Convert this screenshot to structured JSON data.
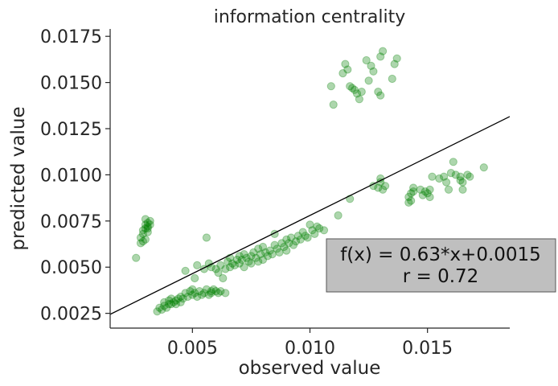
{
  "chart_data": {
    "type": "scatter",
    "title": "information centrality",
    "xlabel": "observed value",
    "ylabel": "predicted value",
    "xlim": [
      0.0015,
      0.0185
    ],
    "ylim": [
      0.0017,
      0.0179
    ],
    "xticks": [
      0.005,
      0.01,
      0.015
    ],
    "xtick_labels": [
      "0.005",
      "0.010",
      "0.015"
    ],
    "yticks": [
      0.0025,
      0.005,
      0.0075,
      0.01,
      0.0125,
      0.015,
      0.0175
    ],
    "ytick_labels": [
      "0.0025",
      "0.0050",
      "0.0075",
      "0.0100",
      "0.0125",
      "0.0150",
      "0.0175"
    ],
    "grid": false,
    "point_color": "#008000",
    "line_color": "#000000",
    "fit": {
      "slope": 0.63,
      "intercept": 0.0015
    },
    "annotation": {
      "line1": "f(x) = 0.63*x+0.0015",
      "line2": "r = 0.72",
      "box_color": "#bfbfbf"
    },
    "points": [
      [
        0.0026,
        0.0055
      ],
      [
        0.0028,
        0.0063
      ],
      [
        0.0028,
        0.0066
      ],
      [
        0.0029,
        0.0068
      ],
      [
        0.0029,
        0.007
      ],
      [
        0.003,
        0.0071
      ],
      [
        0.003,
        0.0073
      ],
      [
        0.003,
        0.0076
      ],
      [
        0.0031,
        0.0072
      ],
      [
        0.0031,
        0.0069
      ],
      [
        0.0031,
        0.0074
      ],
      [
        0.0032,
        0.0075
      ],
      [
        0.0032,
        0.0073
      ],
      [
        0.003,
        0.0065
      ],
      [
        0.0029,
        0.0064
      ],
      [
        0.0031,
        0.0071
      ],
      [
        0.0035,
        0.0026
      ],
      [
        0.0036,
        0.0028
      ],
      [
        0.0037,
        0.0027
      ],
      [
        0.0038,
        0.0029
      ],
      [
        0.0038,
        0.0031
      ],
      [
        0.0039,
        0.0028
      ],
      [
        0.004,
        0.003
      ],
      [
        0.004,
        0.0032
      ],
      [
        0.0041,
        0.003
      ],
      [
        0.0041,
        0.0033
      ],
      [
        0.0042,
        0.0031
      ],
      [
        0.0043,
        0.0032
      ],
      [
        0.0043,
        0.003
      ],
      [
        0.0044,
        0.0033
      ],
      [
        0.0045,
        0.0031
      ],
      [
        0.0045,
        0.0034
      ],
      [
        0.0046,
        0.0033
      ],
      [
        0.0047,
        0.0036
      ],
      [
        0.0048,
        0.0034
      ],
      [
        0.0049,
        0.0037
      ],
      [
        0.005,
        0.0035
      ],
      [
        0.005,
        0.0038
      ],
      [
        0.0051,
        0.0036
      ],
      [
        0.0052,
        0.0034
      ],
      [
        0.0053,
        0.0037
      ],
      [
        0.0054,
        0.0035
      ],
      [
        0.0055,
        0.0036
      ],
      [
        0.0056,
        0.0038
      ],
      [
        0.0057,
        0.0035
      ],
      [
        0.0058,
        0.0037
      ],
      [
        0.0058,
        0.0036
      ],
      [
        0.0059,
        0.0038
      ],
      [
        0.006,
        0.0037
      ],
      [
        0.0061,
        0.0036
      ],
      [
        0.0062,
        0.0037
      ],
      [
        0.0064,
        0.0036
      ],
      [
        0.0047,
        0.0048
      ],
      [
        0.0051,
        0.0044
      ],
      [
        0.0052,
        0.0051
      ],
      [
        0.0055,
        0.0049
      ],
      [
        0.0056,
        0.0066
      ],
      [
        0.0057,
        0.0052
      ],
      [
        0.0058,
        0.005
      ],
      [
        0.006,
        0.0049
      ],
      [
        0.0061,
        0.0047
      ],
      [
        0.0062,
        0.0051
      ],
      [
        0.0063,
        0.0044
      ],
      [
        0.0064,
        0.0049
      ],
      [
        0.0065,
        0.0053
      ],
      [
        0.0066,
        0.005
      ],
      [
        0.0066,
        0.0055
      ],
      [
        0.0067,
        0.0052
      ],
      [
        0.0068,
        0.0051
      ],
      [
        0.0069,
        0.0054
      ],
      [
        0.007,
        0.0052
      ],
      [
        0.007,
        0.0056
      ],
      [
        0.0071,
        0.0054
      ],
      [
        0.0072,
        0.005
      ],
      [
        0.0072,
        0.0057
      ],
      [
        0.0073,
        0.0055
      ],
      [
        0.0074,
        0.0053
      ],
      [
        0.0075,
        0.0056
      ],
      [
        0.0075,
        0.0052
      ],
      [
        0.0076,
        0.0058
      ],
      [
        0.0077,
        0.0055
      ],
      [
        0.0078,
        0.0053
      ],
      [
        0.0078,
        0.006
      ],
      [
        0.0079,
        0.0057
      ],
      [
        0.008,
        0.0054
      ],
      [
        0.008,
        0.0061
      ],
      [
        0.0081,
        0.0058
      ],
      [
        0.0082,
        0.0056
      ],
      [
        0.0083,
        0.0059
      ],
      [
        0.0084,
        0.0057
      ],
      [
        0.0085,
        0.0068
      ],
      [
        0.0085,
        0.0062
      ],
      [
        0.0086,
        0.006
      ],
      [
        0.0087,
        0.0058
      ],
      [
        0.0088,
        0.0063
      ],
      [
        0.0089,
        0.0061
      ],
      [
        0.009,
        0.0059
      ],
      [
        0.009,
        0.0065
      ],
      [
        0.0091,
        0.0063
      ],
      [
        0.0092,
        0.0066
      ],
      [
        0.0093,
        0.0062
      ],
      [
        0.0094,
        0.0064
      ],
      [
        0.0095,
        0.0067
      ],
      [
        0.0096,
        0.0065
      ],
      [
        0.0097,
        0.0069
      ],
      [
        0.0098,
        0.0067
      ],
      [
        0.0099,
        0.0066
      ],
      [
        0.01,
        0.0073
      ],
      [
        0.0101,
        0.007
      ],
      [
        0.0102,
        0.0068
      ],
      [
        0.0103,
        0.0072
      ],
      [
        0.0104,
        0.0071
      ],
      [
        0.0106,
        0.007
      ],
      [
        0.0112,
        0.0078
      ],
      [
        0.0117,
        0.0087
      ],
      [
        0.0109,
        0.0148
      ],
      [
        0.011,
        0.0138
      ],
      [
        0.0114,
        0.0155
      ],
      [
        0.0115,
        0.016
      ],
      [
        0.0116,
        0.0157
      ],
      [
        0.0117,
        0.0148
      ],
      [
        0.0118,
        0.0147
      ],
      [
        0.0119,
        0.0146
      ],
      [
        0.012,
        0.0144
      ],
      [
        0.0121,
        0.0141
      ],
      [
        0.0122,
        0.0145
      ],
      [
        0.0124,
        0.0162
      ],
      [
        0.0125,
        0.0151
      ],
      [
        0.0126,
        0.0159
      ],
      [
        0.0127,
        0.0156
      ],
      [
        0.0129,
        0.0145
      ],
      [
        0.013,
        0.0164
      ],
      [
        0.013,
        0.0143
      ],
      [
        0.0131,
        0.0167
      ],
      [
        0.0135,
        0.0152
      ],
      [
        0.0136,
        0.016
      ],
      [
        0.0137,
        0.0163
      ],
      [
        0.0127,
        0.0094
      ],
      [
        0.0129,
        0.0093
      ],
      [
        0.013,
        0.0096
      ],
      [
        0.013,
        0.0098
      ],
      [
        0.0131,
        0.0092
      ],
      [
        0.0132,
        0.0094
      ],
      [
        0.0142,
        0.0085
      ],
      [
        0.0142,
        0.0088
      ],
      [
        0.0143,
        0.009
      ],
      [
        0.0144,
        0.0091
      ],
      [
        0.0143,
        0.0086
      ],
      [
        0.0144,
        0.0093
      ],
      [
        0.0147,
        0.0092
      ],
      [
        0.0148,
        0.0089
      ],
      [
        0.0149,
        0.0091
      ],
      [
        0.015,
        0.009
      ],
      [
        0.0151,
        0.0092
      ],
      [
        0.0151,
        0.0088
      ],
      [
        0.0152,
        0.0099
      ],
      [
        0.0155,
        0.0098
      ],
      [
        0.0157,
        0.0099
      ],
      [
        0.0158,
        0.0096
      ],
      [
        0.0159,
        0.0092
      ],
      [
        0.016,
        0.0101
      ],
      [
        0.0161,
        0.0107
      ],
      [
        0.0162,
        0.01
      ],
      [
        0.0164,
        0.0099
      ],
      [
        0.0164,
        0.0097
      ],
      [
        0.0165,
        0.0092
      ],
      [
        0.0165,
        0.0096
      ],
      [
        0.0167,
        0.01
      ],
      [
        0.0168,
        0.0099
      ],
      [
        0.0174,
        0.0104
      ]
    ]
  }
}
